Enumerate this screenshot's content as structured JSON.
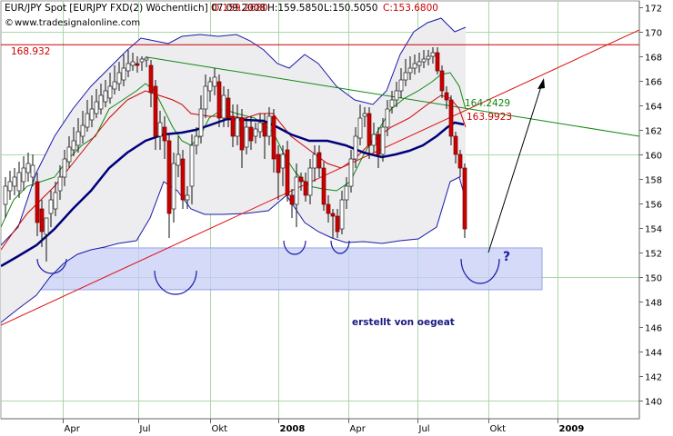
{
  "chart_data": {
    "type": "candlestick",
    "header": "EUR/JPY Spot [EURJPY FXD(2)  Wöchentlich] 07.09.2008",
    "ohlc_text": {
      "open": "O:159.2680",
      "high": "H:159.5850",
      "low": "L:150.5050",
      "close": "C:153.6800"
    },
    "source": "www.tradesignalonline.com",
    "annotation": "erstellt von oegeat",
    "question_mark": "?",
    "x_labels": [
      "Apr",
      "Jul",
      "Okt",
      "2008",
      "Apr",
      "Jul",
      "Okt",
      "2009"
    ],
    "y_ticks": [
      140,
      142,
      144,
      146,
      148,
      150,
      152,
      154,
      156,
      158,
      160,
      162,
      164,
      166,
      168,
      170,
      172
    ],
    "ylim": [
      138.5,
      172.5
    ],
    "levels": [
      {
        "label": "168.932",
        "value": 168.932,
        "color": "#cc0000"
      }
    ],
    "value_labels": [
      {
        "label": "164.2429",
        "value": 164.2429,
        "color": "#118811"
      },
      {
        "label": "163.9923",
        "value": 163.9923,
        "color": "#cc0000"
      }
    ],
    "support_zone": {
      "from": 149.0,
      "to": 152.4
    },
    "colors": {
      "bullish": "#ffffff",
      "bearish": "#cc0000",
      "bollinger": "#1a1aa8",
      "sma_long": "#00007a",
      "sma_mid": "#cc0000",
      "sma_short": "#118811",
      "trend_up": "#dd1111",
      "trend_down": "#118811",
      "zone": "#c6cdf4"
    }
  }
}
